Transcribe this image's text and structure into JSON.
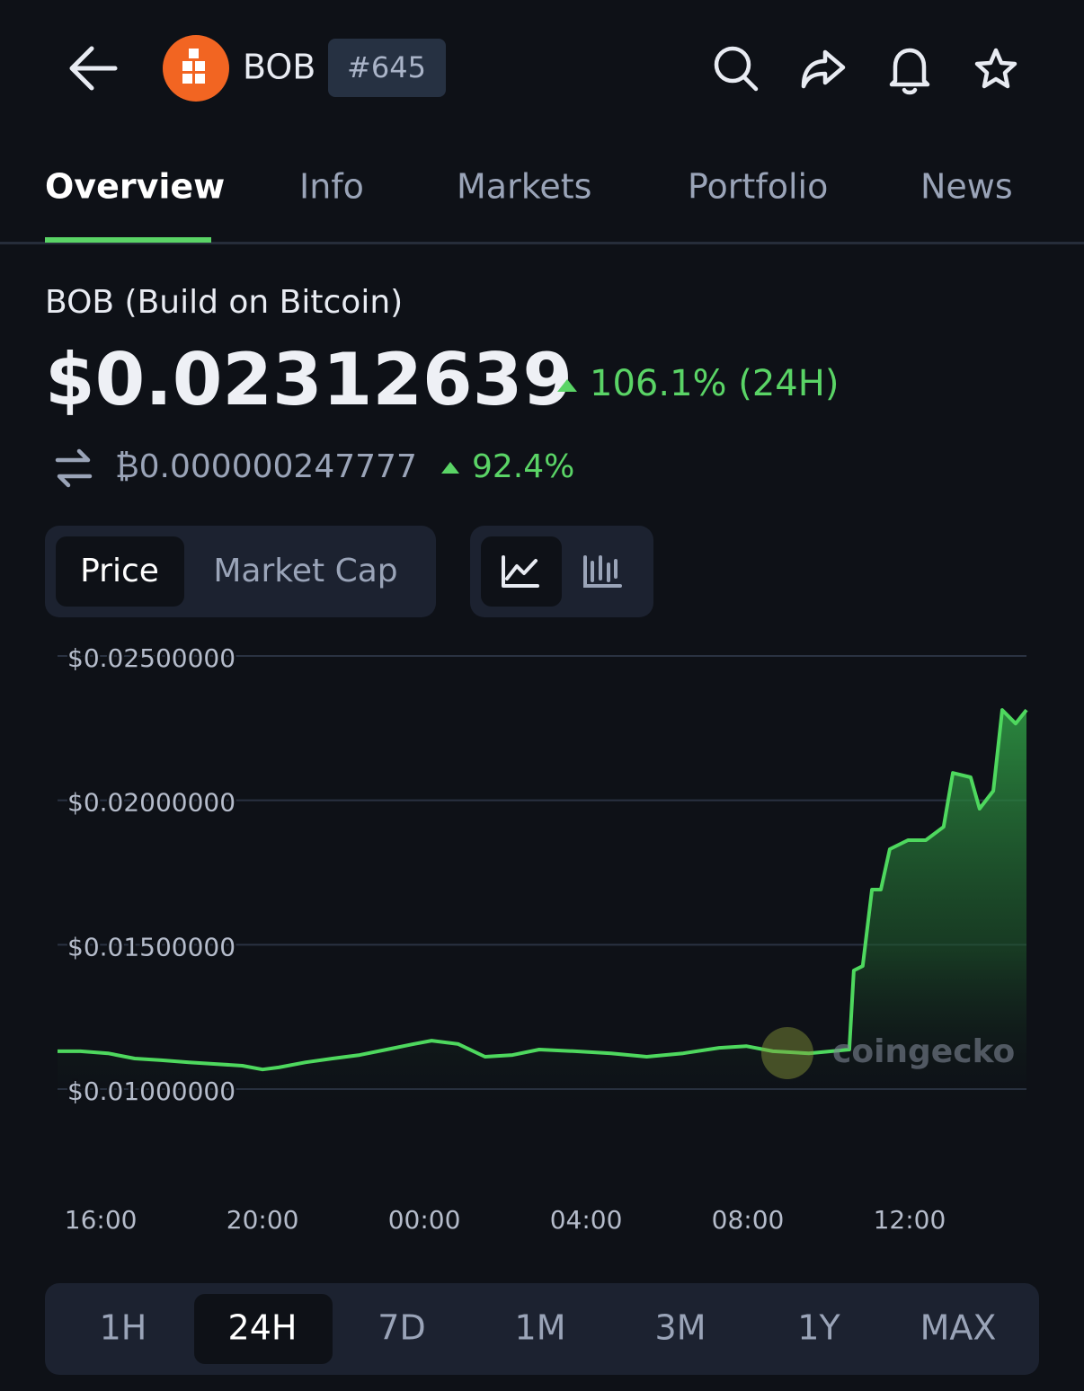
{
  "header": {
    "symbol": "BOB",
    "rank": "#645"
  },
  "tabs": [
    "Overview",
    "Info",
    "Markets",
    "Portfolio",
    "News"
  ],
  "coin": {
    "name": "BOB (Build on Bitcoin)",
    "price": "$0.02312639",
    "change": "106.1% (24H)",
    "btc_price": "₿0.000000247777",
    "btc_change": "92.4%"
  },
  "chart_toggle": [
    "Price",
    "Market Cap"
  ],
  "chart_data": {
    "type": "line",
    "watermark": "coingecko",
    "x": [
      14.93,
      15.5,
      16.18,
      16.84,
      17.5,
      18.18,
      18.84,
      19.5,
      20.0,
      20.4,
      21.07,
      21.73,
      22.4,
      23.07,
      23.73,
      24.18,
      24.84,
      25.5,
      26.18,
      26.84,
      27.73,
      28.62,
      29.5,
      30.4,
      31.29,
      31.96,
      32.62,
      33.51,
      34.51,
      34.62,
      34.84,
      35.07,
      35.29,
      35.51,
      35.96,
      36.4,
      36.84,
      37.07,
      37.51,
      37.73,
      38.07,
      38.29,
      38.62,
      38.89
    ],
    "series": [
      {
        "color": "#4ed85e",
        "values": [
          0.01131,
          0.01131,
          0.01124,
          0.01106,
          0.011,
          0.01093,
          0.01087,
          0.01081,
          0.01068,
          0.01075,
          0.01093,
          0.01106,
          0.01118,
          0.01137,
          0.01156,
          0.01168,
          0.01156,
          0.01112,
          0.01118,
          0.01137,
          0.01131,
          0.01124,
          0.01112,
          0.01124,
          0.01143,
          0.01149,
          0.01131,
          0.01124,
          0.01137,
          0.01411,
          0.01426,
          0.01691,
          0.01691,
          0.01831,
          0.01862,
          0.01862,
          0.01908,
          0.02095,
          0.0208,
          0.01971,
          0.02033,
          0.02313,
          0.02266,
          0.02313
        ]
      }
    ],
    "xlim": [
      14.93,
      38.89
    ],
    "ylim": [
      0.00913,
      0.025
    ],
    "yticks": [
      {
        "value": 0.025,
        "label": "$0.02500000"
      },
      {
        "value": 0.02,
        "label": "$0.02000000"
      },
      {
        "value": 0.015,
        "label": "$0.01500000"
      },
      {
        "value": 0.01,
        "label": "$0.01000000"
      }
    ],
    "xticks": [
      {
        "value": 16,
        "label": "16:00"
      },
      {
        "value": 20,
        "label": "20:00"
      },
      {
        "value": 24,
        "label": "00:00"
      },
      {
        "value": 28,
        "label": "04:00"
      },
      {
        "value": 32,
        "label": "08:00"
      },
      {
        "value": 36,
        "label": "12:00"
      }
    ],
    "grid": true
  },
  "ranges": [
    "1H",
    "24H",
    "7D",
    "1M",
    "3M",
    "1Y",
    "MAX"
  ]
}
